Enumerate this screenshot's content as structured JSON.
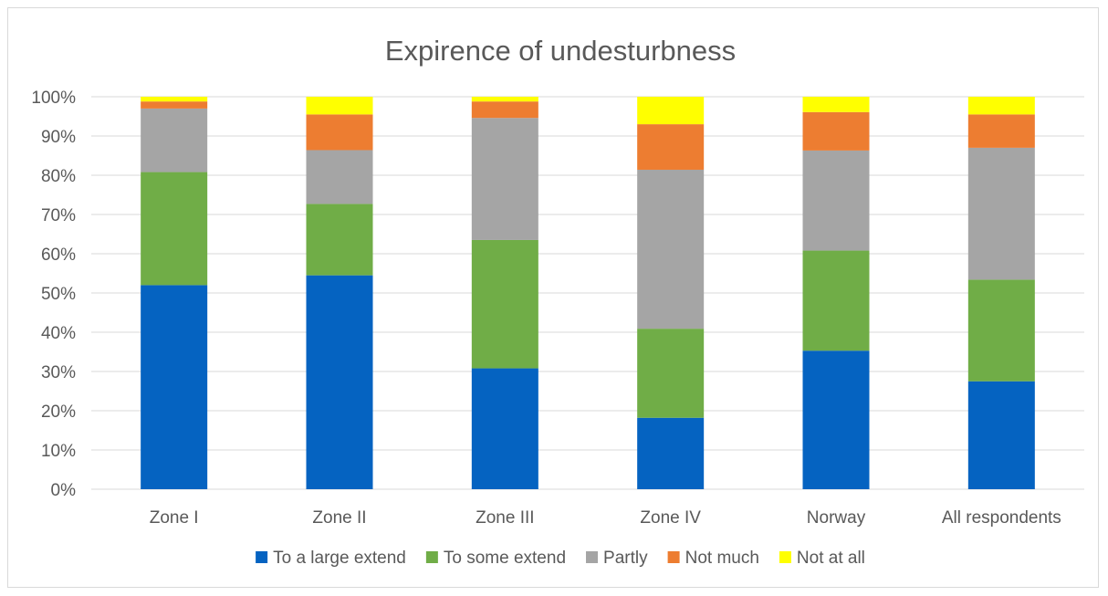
{
  "chart_data": {
    "type": "bar",
    "stacked": true,
    "title": "Expirence of undesturbness",
    "xlabel": "",
    "ylabel": "",
    "ylim": [
      0,
      1
    ],
    "y_tick_labels": [
      "0%",
      "10%",
      "20%",
      "30%",
      "40%",
      "50%",
      "60%",
      "70%",
      "80%",
      "90%",
      "100%"
    ],
    "categories": [
      "Zone I",
      "Zone II",
      "Zone III",
      "Zone IV",
      "Norway",
      "All respondents"
    ],
    "series": [
      {
        "name": "To a large extend",
        "color": "#0563c1",
        "values": [
          0.52,
          0.545,
          0.308,
          0.182,
          0.353,
          0.275
        ]
      },
      {
        "name": "To some extend",
        "color": "#70ad47",
        "values": [
          0.288,
          0.182,
          0.327,
          0.227,
          0.255,
          0.259
        ]
      },
      {
        "name": "Partly",
        "color": "#a5a5a5",
        "values": [
          0.162,
          0.137,
          0.311,
          0.405,
          0.255,
          0.336
        ]
      },
      {
        "name": "Not much",
        "color": "#ed7d31",
        "values": [
          0.018,
          0.091,
          0.042,
          0.116,
          0.098,
          0.085
        ]
      },
      {
        "name": "Not at all",
        "color": "#ffff00",
        "values": [
          0.012,
          0.045,
          0.012,
          0.07,
          0.039,
          0.045
        ]
      }
    ],
    "grid": true,
    "legend_position": "bottom"
  }
}
